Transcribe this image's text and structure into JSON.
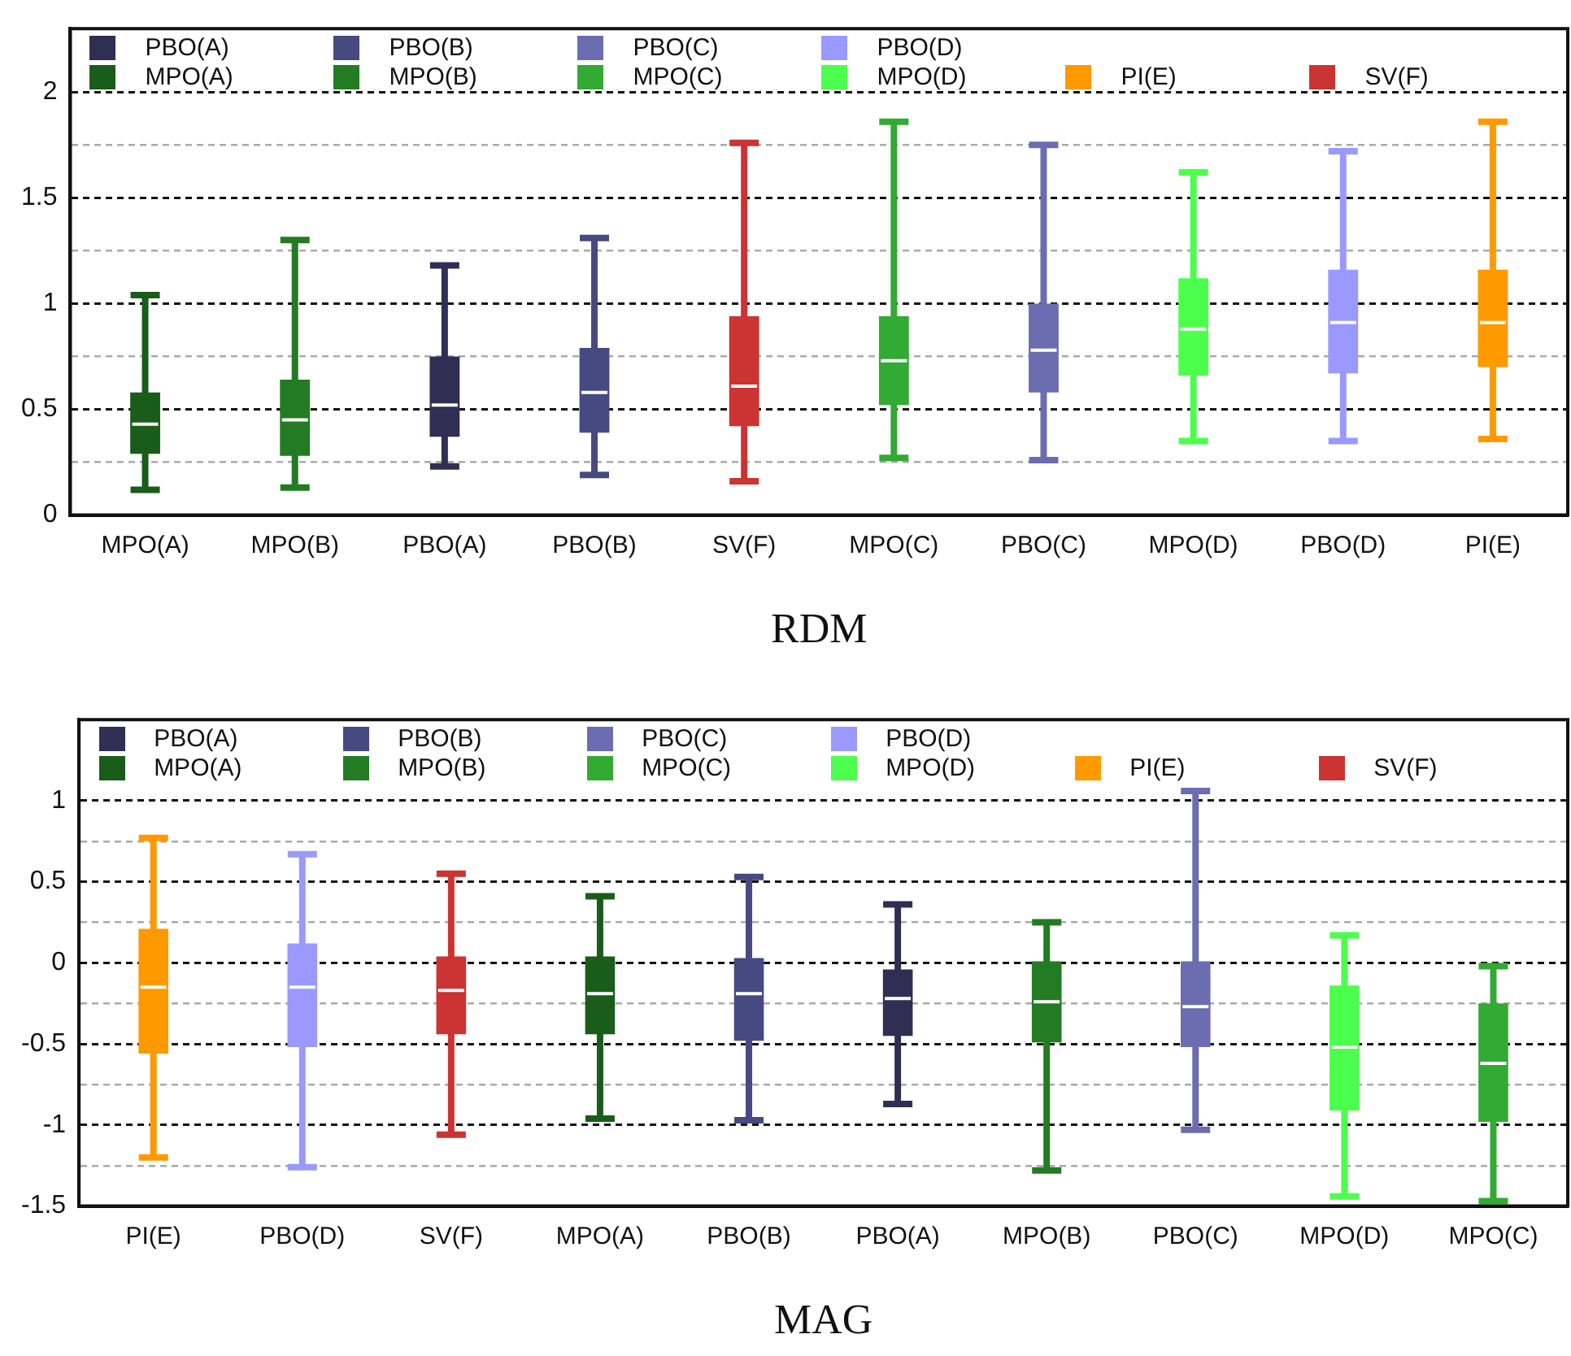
{
  "chart_data": [
    {
      "type": "box",
      "xlabel": "RDM",
      "legend": "top",
      "grid": true,
      "line_style": "dashed",
      "categories": [
        "MPO(A)",
        "MPO(B)",
        "PBO(A)",
        "PBO(B)",
        "SV(F)",
        "MPO(C)",
        "PBO(C)",
        "MPO(D)",
        "PBO(D)",
        "PI(E)"
      ],
      "ylim": [
        0,
        2.3
      ],
      "yticks": [
        0,
        {
          "value": 0.25,
          "label": null
        },
        0.5,
        {
          "value": 0.75,
          "label": null
        },
        1,
        {
          "value": 1.25,
          "label": null
        },
        1.5,
        {
          "value": 1.75,
          "label": null
        },
        2
      ],
      "series": [
        {
          "name": "PBO(A)",
          "color": "#2e2f52",
          "boxes": [
            null,
            null,
            {
              "low": 0.23,
              "q1": 0.37,
              "median": 0.52,
              "q3": 0.75,
              "high": 1.18
            },
            null,
            null,
            null,
            null,
            null,
            null,
            null
          ]
        },
        {
          "name": "PBO(B)",
          "color": "#474a80",
          "boxes": [
            null,
            null,
            null,
            {
              "low": 0.19,
              "q1": 0.39,
              "median": 0.58,
              "q3": 0.79,
              "high": 1.31
            },
            null,
            null,
            null,
            null,
            null,
            null
          ]
        },
        {
          "name": "PBO(C)",
          "color": "#6b6db0",
          "boxes": [
            null,
            null,
            null,
            null,
            null,
            null,
            {
              "low": 0.26,
              "q1": 0.58,
              "median": 0.78,
              "q3": 1.0,
              "high": 1.75
            },
            null,
            null,
            null
          ]
        },
        {
          "name": "PBO(D)",
          "color": "#9999ff",
          "boxes": [
            null,
            null,
            null,
            null,
            null,
            null,
            null,
            null,
            {
              "low": 0.35,
              "q1": 0.67,
              "median": 0.91,
              "q3": 1.16,
              "high": 1.72
            },
            null
          ]
        },
        {
          "name": "MPO(A)",
          "color": "#1a5c1a",
          "boxes": [
            {
              "low": 0.12,
              "q1": 0.29,
              "median": 0.43,
              "q3": 0.58,
              "high": 1.04
            },
            null,
            null,
            null,
            null,
            null,
            null,
            null,
            null,
            null
          ]
        },
        {
          "name": "MPO(B)",
          "color": "#237b23",
          "boxes": [
            null,
            {
              "low": 0.13,
              "q1": 0.28,
              "median": 0.45,
              "q3": 0.64,
              "high": 1.3
            },
            null,
            null,
            null,
            null,
            null,
            null,
            null,
            null
          ]
        },
        {
          "name": "MPO(C)",
          "color": "#33aa33",
          "boxes": [
            null,
            null,
            null,
            null,
            null,
            {
              "low": 0.27,
              "q1": 0.52,
              "median": 0.73,
              "q3": 0.94,
              "high": 1.86
            },
            null,
            null,
            null,
            null
          ]
        },
        {
          "name": "MPO(D)",
          "color": "#4dff4d",
          "boxes": [
            null,
            null,
            null,
            null,
            null,
            null,
            null,
            {
              "low": 0.35,
              "q1": 0.66,
              "median": 0.88,
              "q3": 1.12,
              "high": 1.62
            },
            null,
            null
          ]
        },
        {
          "name": "PI(E)",
          "color": "#ff9900",
          "boxes": [
            null,
            null,
            null,
            null,
            null,
            null,
            null,
            null,
            null,
            {
              "low": 0.36,
              "q1": 0.7,
              "median": 0.91,
              "q3": 1.16,
              "high": 1.86
            }
          ]
        },
        {
          "name": "SV(F)",
          "color": "#cc3333",
          "boxes": [
            null,
            null,
            null,
            null,
            {
              "low": 0.16,
              "q1": 0.42,
              "median": 0.61,
              "q3": 0.94,
              "high": 1.76
            },
            null,
            null,
            null,
            null,
            null
          ]
        }
      ]
    },
    {
      "type": "box",
      "xlabel": "MAG",
      "legend": "top",
      "grid": true,
      "line_style": "dashed",
      "categories": [
        "PI(E)",
        "PBO(D)",
        "SV(F)",
        "MPO(A)",
        "PBO(B)",
        "PBO(A)",
        "MPO(B)",
        "PBO(C)",
        "MPO(D)",
        "MPO(C)"
      ],
      "ylim": [
        -1.5,
        1.5
      ],
      "yticks": [
        -1.5,
        {
          "value": -1.25,
          "label": null
        },
        -1,
        {
          "value": -0.75,
          "label": null
        },
        -0.5,
        {
          "value": -0.25,
          "label": null
        },
        0,
        {
          "value": 0.25,
          "label": null
        },
        0.5,
        {
          "value": 0.75,
          "label": null
        },
        1
      ],
      "series": [
        {
          "name": "PBO(A)",
          "color": "#2e2f52",
          "boxes": [
            null,
            null,
            null,
            null,
            null,
            {
              "low": -0.87,
              "q1": -0.45,
              "median": -0.22,
              "q3": -0.04,
              "high": 0.36
            },
            null,
            null,
            null,
            null
          ]
        },
        {
          "name": "PBO(B)",
          "color": "#474a80",
          "boxes": [
            null,
            null,
            null,
            null,
            {
              "low": -0.97,
              "q1": -0.48,
              "median": -0.19,
              "q3": 0.03,
              "high": 0.53
            },
            null,
            null,
            null,
            null,
            null
          ]
        },
        {
          "name": "PBO(C)",
          "color": "#6b6db0",
          "boxes": [
            null,
            null,
            null,
            null,
            null,
            null,
            null,
            {
              "low": -1.03,
              "q1": -0.52,
              "median": -0.27,
              "q3": 0.01,
              "high": 1.06
            },
            null,
            null
          ]
        },
        {
          "name": "PBO(D)",
          "color": "#9999ff",
          "boxes": [
            null,
            {
              "low": -1.26,
              "q1": -0.52,
              "median": -0.15,
              "q3": 0.12,
              "high": 0.67
            },
            null,
            null,
            null,
            null,
            null,
            null,
            null,
            null
          ]
        },
        {
          "name": "MPO(A)",
          "color": "#1a5c1a",
          "boxes": [
            null,
            null,
            null,
            {
              "low": -0.96,
              "q1": -0.44,
              "median": -0.19,
              "q3": 0.04,
              "high": 0.41
            },
            null,
            null,
            null,
            null,
            null,
            null
          ]
        },
        {
          "name": "MPO(B)",
          "color": "#237b23",
          "boxes": [
            null,
            null,
            null,
            null,
            null,
            null,
            {
              "low": -1.28,
              "q1": -0.49,
              "median": -0.24,
              "q3": 0.01,
              "high": 0.25
            },
            null,
            null,
            null
          ]
        },
        {
          "name": "MPO(C)",
          "color": "#33aa33",
          "boxes": [
            null,
            null,
            null,
            null,
            null,
            null,
            null,
            null,
            null,
            {
              "low": -1.47,
              "q1": -0.98,
              "median": -0.62,
              "q3": -0.25,
              "high": -0.02
            }
          ]
        },
        {
          "name": "MPO(D)",
          "color": "#4dff4d",
          "boxes": [
            null,
            null,
            null,
            null,
            null,
            null,
            null,
            null,
            {
              "low": -1.44,
              "q1": -0.91,
              "median": -0.52,
              "q3": -0.14,
              "high": 0.17
            },
            null
          ]
        },
        {
          "name": "PI(E)",
          "color": "#ff9900",
          "boxes": [
            {
              "low": -1.2,
              "q1": -0.56,
              "median": -0.15,
              "q3": 0.21,
              "high": 0.77
            },
            null,
            null,
            null,
            null,
            null,
            null,
            null,
            null,
            null
          ]
        },
        {
          "name": "SV(F)",
          "color": "#cc3333",
          "boxes": [
            null,
            null,
            {
              "low": -1.06,
              "q1": -0.44,
              "median": -0.17,
              "q3": 0.04,
              "high": 0.55
            },
            null,
            null,
            null,
            null,
            null,
            null,
            null
          ]
        }
      ]
    }
  ]
}
